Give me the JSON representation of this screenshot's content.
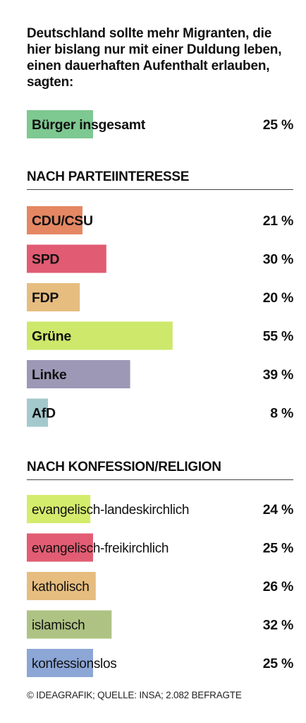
{
  "title": "Deutschland sollte mehr Migranten, die hier bislang nur mit einer Duldung leben, einen dauerhaften Aufenthalt erlauben, sagten:",
  "footer": "© IDEAGRAFIK; QUELLE: INSA; 2.082 BEFRAGTE",
  "chart_data": {
    "type": "bar",
    "orientation": "horizontal",
    "unit": "%",
    "xlim": [
      0,
      100
    ],
    "groups": [
      {
        "heading": "",
        "bars": [
          {
            "label": "Bürger insgesamt",
            "value": 25,
            "value_label": "25 %",
            "color": "#7ec891"
          }
        ]
      },
      {
        "heading": "NACH PARTEIINTERESSE",
        "bars": [
          {
            "label": "CDU/CSU",
            "value": 21,
            "value_label": "21 %",
            "color": "#e58763"
          },
          {
            "label": "SPD",
            "value": 30,
            "value_label": "30 %",
            "color": "#e15c73"
          },
          {
            "label": "FDP",
            "value": 20,
            "value_label": "20 %",
            "color": "#e6bd7f"
          },
          {
            "label": "Grüne",
            "value": 55,
            "value_label": "55 %",
            "color": "#cde86b"
          },
          {
            "label": "Linke",
            "value": 39,
            "value_label": "39 %",
            "color": "#9c98b6"
          },
          {
            "label": "AfD",
            "value": 8,
            "value_label": "8 %",
            "color": "#a4c9cc"
          }
        ]
      },
      {
        "heading": "NACH KONFESSION/RELIGION",
        "bars": [
          {
            "label": "evangelisch-landeskirchlich",
            "value": 24,
            "value_label": "24 %",
            "color": "#d4ec6c"
          },
          {
            "label": "evangelisch-freikirchlich",
            "value": 25,
            "value_label": "25 %",
            "color": "#e25d73"
          },
          {
            "label": "katholisch",
            "value": 26,
            "value_label": "26 %",
            "color": "#e6bd7f"
          },
          {
            "label": "islamisch",
            "value": 32,
            "value_label": "32 %",
            "color": "#aec383"
          },
          {
            "label": "konfessionslos",
            "value": 25,
            "value_label": "25 %",
            "color": "#8ca6d6"
          }
        ]
      }
    ]
  }
}
